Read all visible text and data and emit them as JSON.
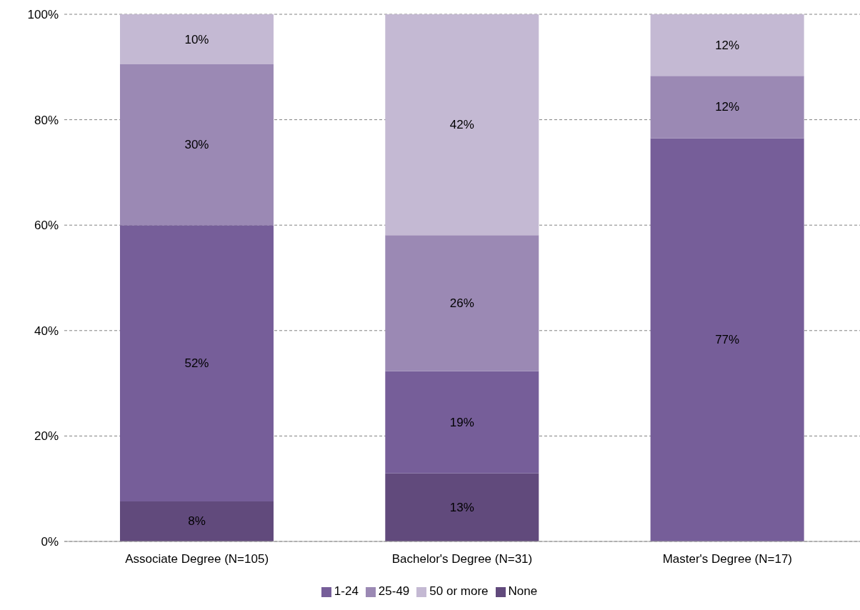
{
  "chart_data": {
    "type": "bar",
    "stacked": true,
    "categories": [
      "Associate Degree (N=105)",
      "Bachelor's Degree (N=31)",
      "Master's Degree (N=17)"
    ],
    "series": [
      {
        "name": "None",
        "color": "#614a7c",
        "values": [
          7.6,
          12.9,
          0
        ],
        "value_labels": [
          "8%",
          "13%",
          null
        ]
      },
      {
        "name": "1-24",
        "color": "#765e99",
        "values": [
          52.4,
          19.4,
          76.5
        ],
        "value_labels": [
          "52%",
          "19%",
          "77%"
        ]
      },
      {
        "name": "25-49",
        "color": "#9b89b4",
        "values": [
          30.5,
          25.8,
          11.8
        ],
        "value_labels": [
          "30%",
          "26%",
          "12%"
        ]
      },
      {
        "name": "50 or more",
        "color": "#c4b9d3",
        "values": [
          9.5,
          41.9,
          11.7
        ],
        "value_labels": [
          "10%",
          "42%",
          "12%"
        ]
      }
    ],
    "ylim": [
      0,
      100
    ],
    "yticks": [
      {
        "value": 0,
        "label": "0%"
      },
      {
        "value": 20,
        "label": "20%"
      },
      {
        "value": 40,
        "label": "40%"
      },
      {
        "value": 60,
        "label": "60%"
      },
      {
        "value": 80,
        "label": "80%"
      },
      {
        "value": 100,
        "label": "100%"
      }
    ],
    "grid": "y",
    "legend": "bottom"
  }
}
